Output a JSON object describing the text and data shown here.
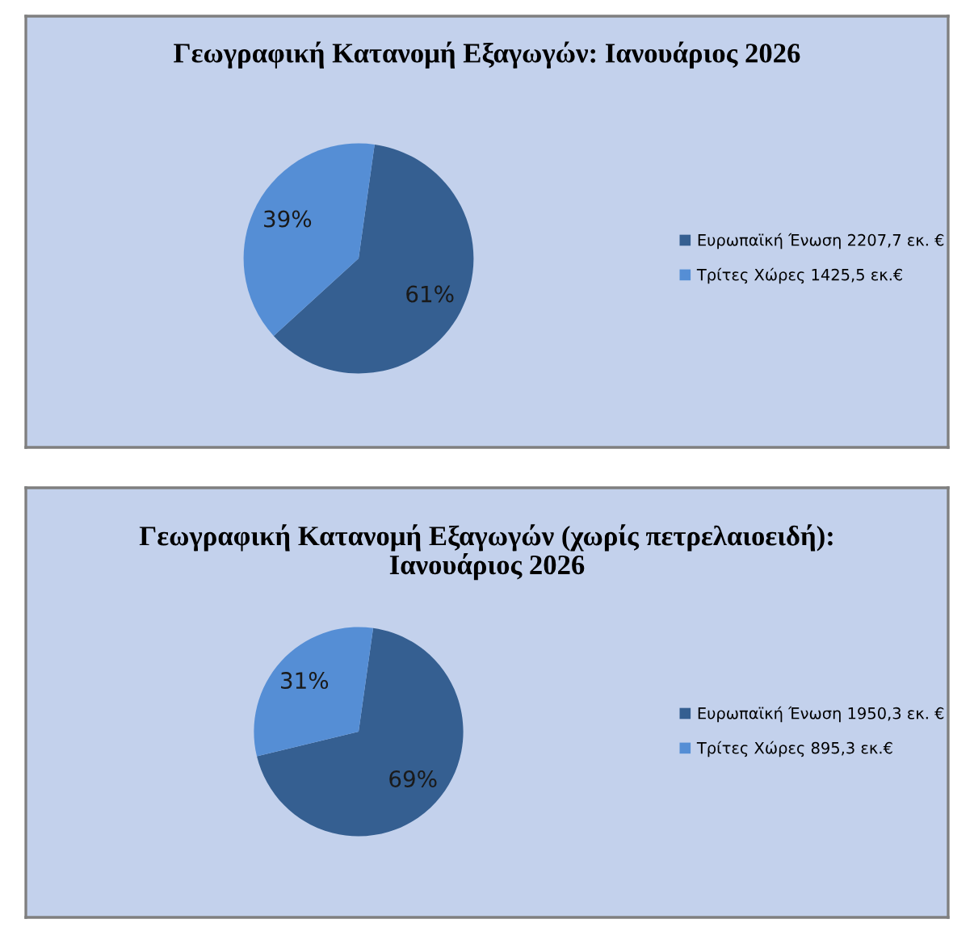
{
  "chart_data": [
    {
      "type": "pie",
      "title": "Γεωγραφική Κατανομή Εξαγωγών: Ιανουάριος 2026",
      "categories": [
        "Ευρωπαϊκή Ένωση 2207,7 εκ. €",
        "Τρίτες Χώρες 1425,5 εκ.€"
      ],
      "values": [
        61,
        39
      ],
      "colors": [
        "#355f91",
        "#558ed5"
      ],
      "value_labels": [
        "61%",
        "39%"
      ],
      "legend": "right"
    },
    {
      "type": "pie",
      "title": "Γεωγραφική Κατανομή Εξαγωγών (χωρίς πετρελαιοειδή):\nΙανουάριος 2026",
      "categories": [
        "Ευρωπαϊκή Ένωση 1950,3 εκ. €",
        "Τρίτες Χώρες 895,3 εκ.€"
      ],
      "values": [
        69,
        31
      ],
      "colors": [
        "#355f91",
        "#558ed5"
      ],
      "value_labels": [
        "69%",
        "31%"
      ],
      "legend": "right"
    }
  ]
}
